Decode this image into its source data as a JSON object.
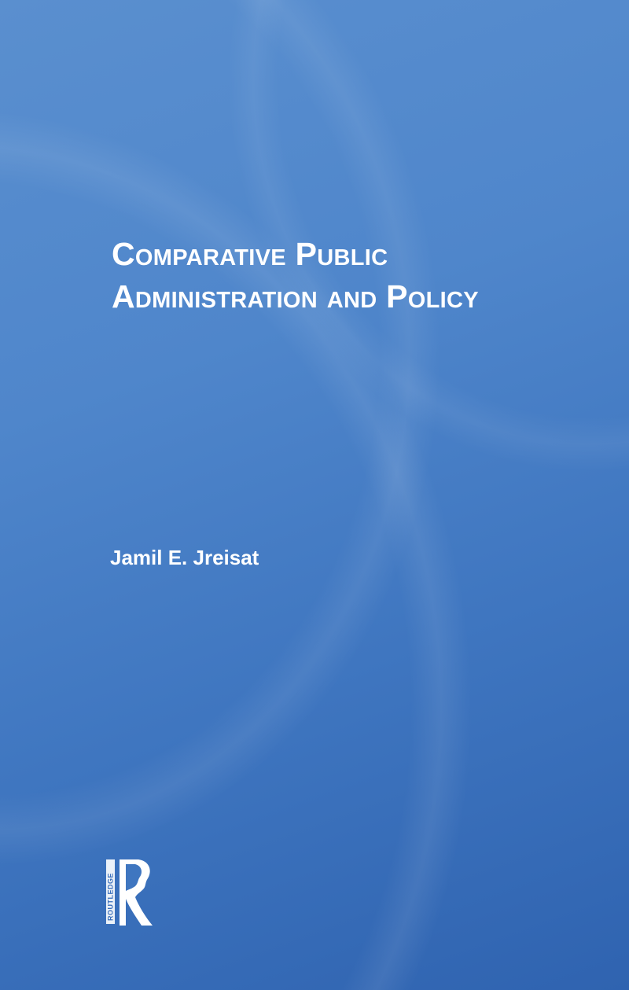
{
  "cover": {
    "title_line1": "Comparative Public",
    "title_line2": "Administration and Policy",
    "author": "Jamil E. Jreisat",
    "publisher_logo_text": "ROUTLEDGE",
    "background_color": "#4a80c6",
    "text_color": "#ffffff"
  }
}
